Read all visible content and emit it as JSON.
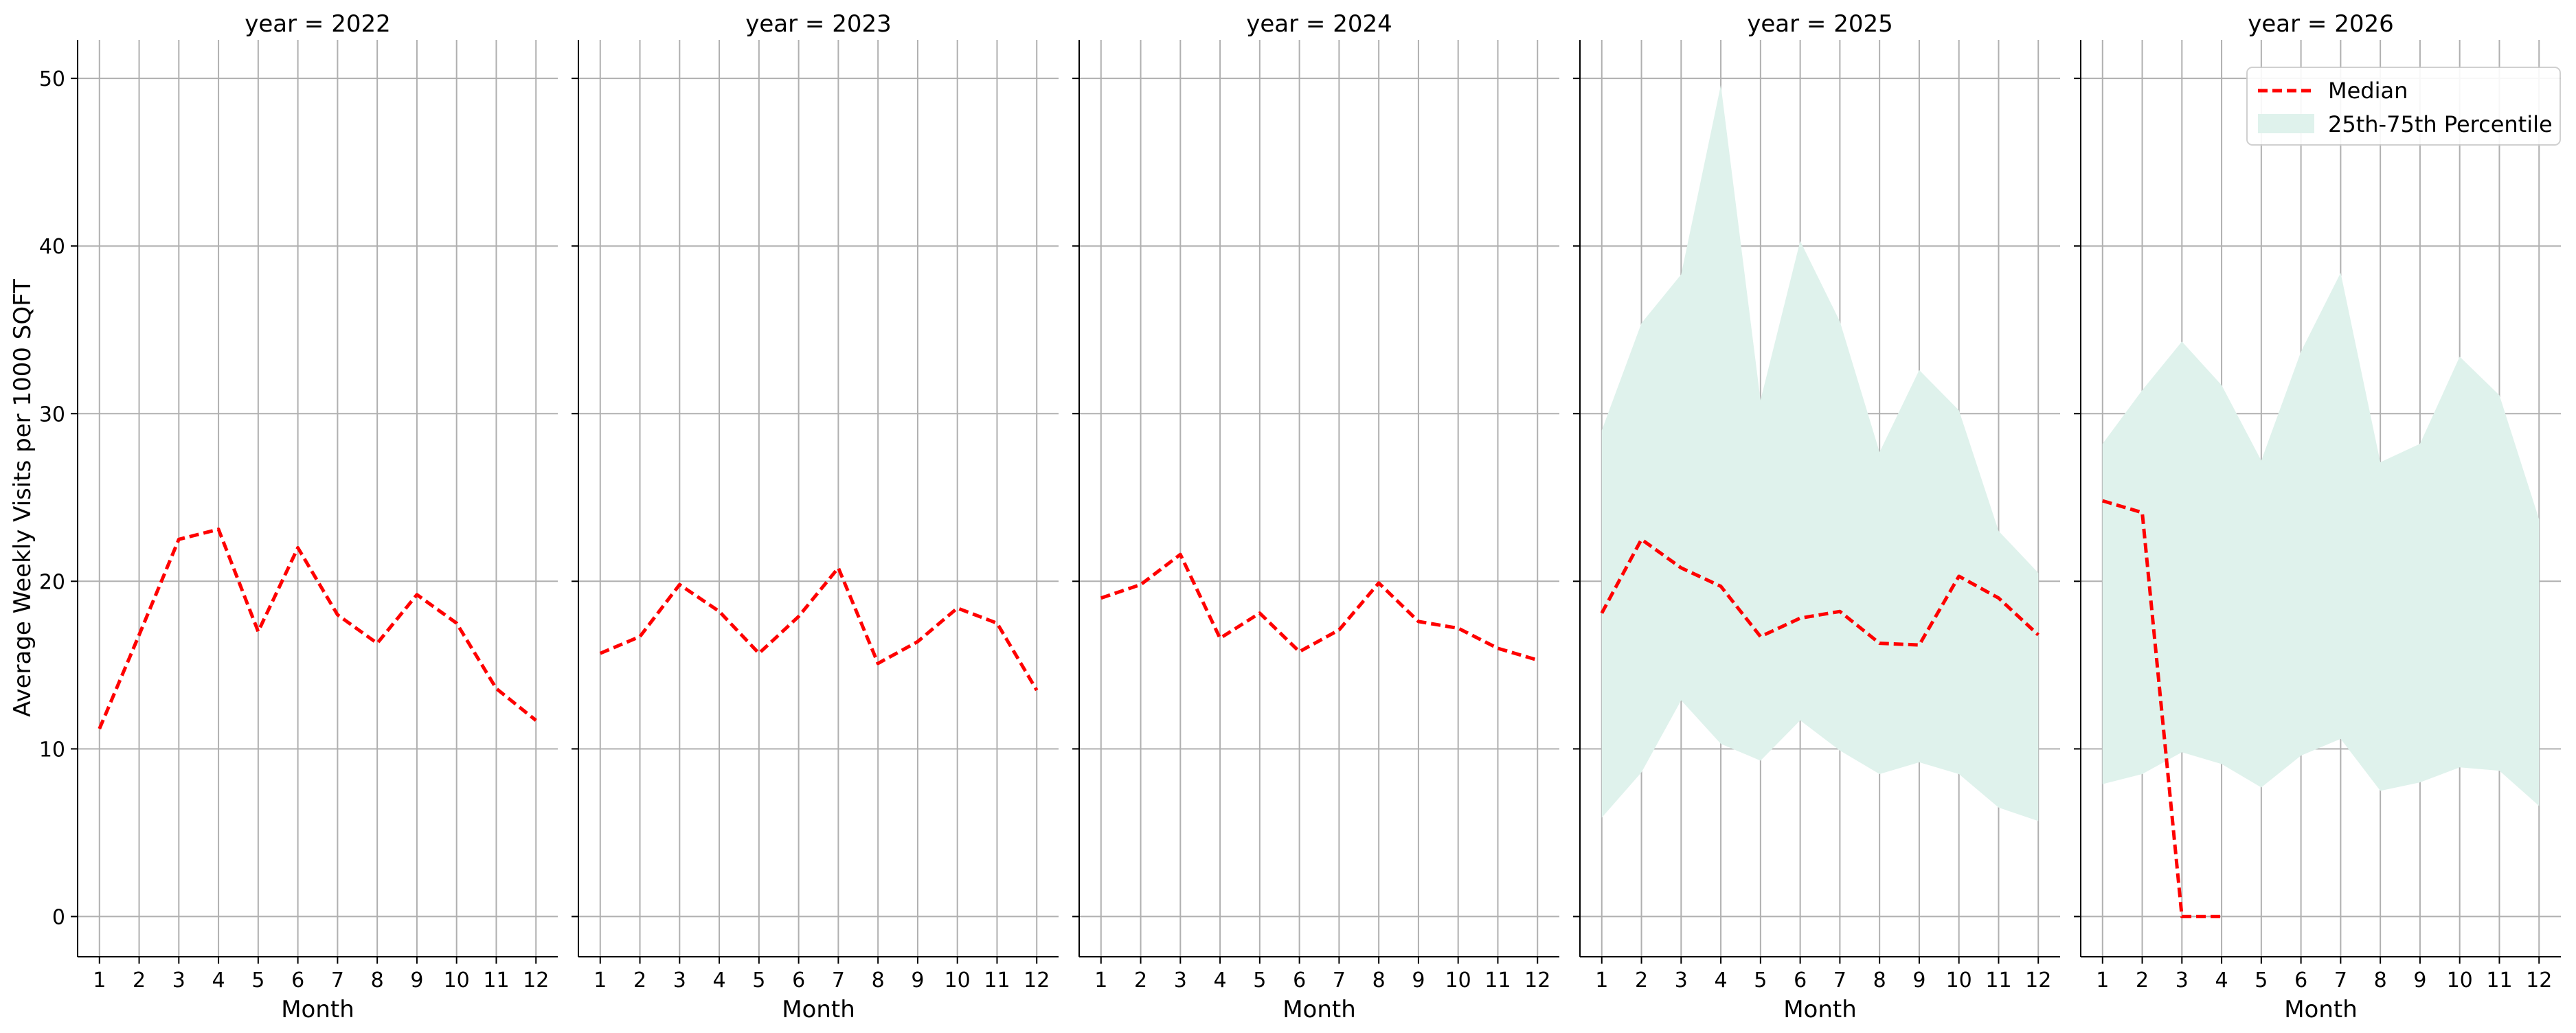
{
  "figure": {
    "ylabel": "Average Weekly Visits per 1000 SQFT"
  },
  "chart_data": {
    "type": "line",
    "facet_label": "year",
    "xlabel": "Month",
    "ylabel": "Average Weekly Visits per 1000 SQFT",
    "x_ticks": [
      "1",
      "2",
      "3",
      "4",
      "5",
      "6",
      "7",
      "8",
      "9",
      "10",
      "11",
      "12"
    ],
    "y_ticks": [
      "0",
      "10",
      "20",
      "30",
      "40",
      "50"
    ],
    "ylim": [
      -2.4,
      52.3
    ],
    "xlim": [
      0.45,
      12.55
    ],
    "grid": true,
    "legend": {
      "placement": "upper right of last panel",
      "median_label": "Median",
      "band_label": "25th-75th Percentile"
    },
    "colors": {
      "median": "#ff0000",
      "band": "#dff2ec",
      "grid": "#b0b0b0",
      "axis": "#000000"
    },
    "panels": [
      {
        "title": "year = 2022",
        "median": [
          11.2,
          16.8,
          22.5,
          23.1,
          17.0,
          22.0,
          18.0,
          16.3,
          19.2,
          17.5,
          13.6,
          11.7
        ],
        "p25": null,
        "p75": null
      },
      {
        "title": "year = 2023",
        "median": [
          15.7,
          16.7,
          19.8,
          18.2,
          15.7,
          17.9,
          20.8,
          15.1,
          16.4,
          18.4,
          17.5,
          13.5
        ],
        "p25": null,
        "p75": null
      },
      {
        "title": "year = 2024",
        "median": [
          19.0,
          19.8,
          21.6,
          16.6,
          18.1,
          15.8,
          17.1,
          19.9,
          17.6,
          17.2,
          16.0,
          15.3
        ],
        "p25": null,
        "p75": null
      },
      {
        "title": "year = 2025",
        "median": [
          18.1,
          22.5,
          20.8,
          19.7,
          16.7,
          17.8,
          18.2,
          16.3,
          16.2,
          20.3,
          19.0,
          16.8
        ],
        "p25": [
          5.9,
          8.6,
          12.9,
          10.3,
          9.3,
          11.7,
          9.9,
          8.5,
          9.2,
          8.5,
          6.5,
          5.7
        ],
        "p75": [
          29.0,
          35.4,
          38.3,
          49.6,
          30.8,
          40.3,
          35.5,
          27.7,
          32.6,
          30.2,
          23.0,
          20.5
        ]
      },
      {
        "title": "year = 2026",
        "median": [
          24.8,
          24.1,
          0.0,
          0.0,
          null,
          null,
          null,
          null,
          null,
          null,
          null,
          null
        ],
        "p25": [
          7.9,
          8.5,
          9.8,
          9.1,
          7.7,
          9.6,
          10.6,
          7.5,
          8.0,
          8.9,
          8.7,
          6.6
        ],
        "p75": [
          28.2,
          31.4,
          34.3,
          31.7,
          27.2,
          33.7,
          38.4,
          27.1,
          28.2,
          33.4,
          31.1,
          23.7
        ]
      }
    ]
  }
}
